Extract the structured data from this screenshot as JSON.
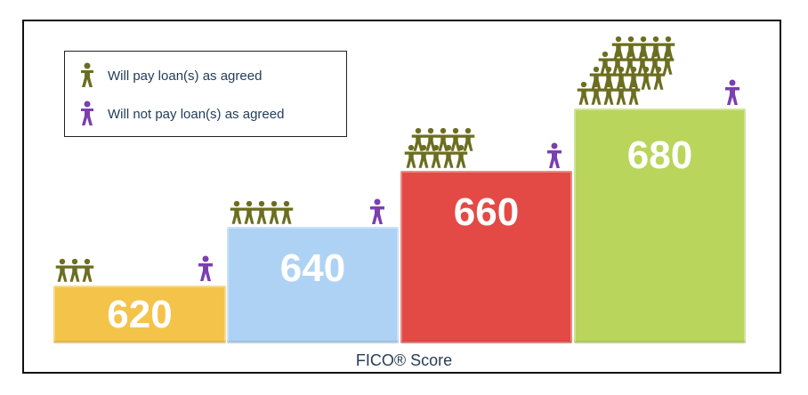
{
  "legend": {
    "pay": {
      "label": "Will pay loan(s) as agreed",
      "color": "#6b6e1f",
      "icon": "person-green-icon"
    },
    "nopay": {
      "label": "Will not pay loan(s) as agreed",
      "color": "#7b3fb0",
      "icon": "person-purple-icon"
    }
  },
  "steps": [
    {
      "score": "620",
      "color": "#f4c34a",
      "pay_count": 3,
      "nopay_count": 1
    },
    {
      "score": "640",
      "color": "#aed2f4",
      "pay_count": 5,
      "nopay_count": 1
    },
    {
      "score": "660",
      "color": "#e44a45",
      "pay_count": 10,
      "nopay_count": 1
    },
    {
      "score": "680",
      "color": "#b9d55b",
      "pay_count": 20,
      "nopay_count": 1
    }
  ],
  "footer": {
    "label": "FICO® Score"
  }
}
